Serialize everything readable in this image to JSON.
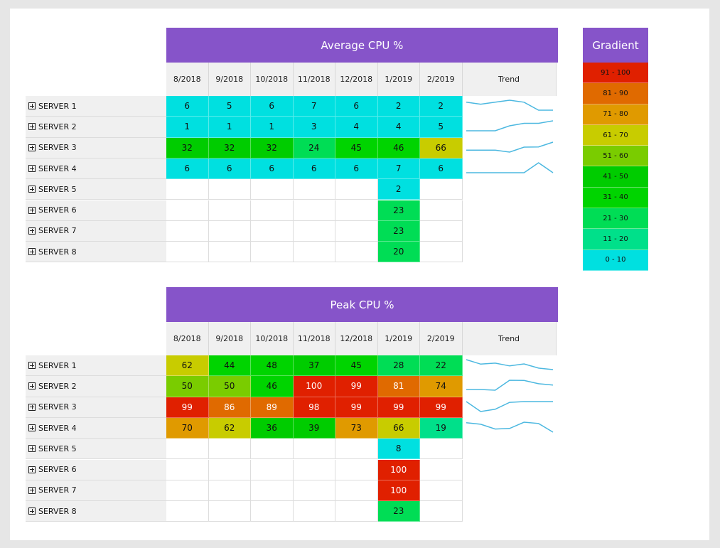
{
  "columns": [
    "8/2018",
    "9/2018",
    "10/2018",
    "11/2018",
    "12/2018",
    "1/2019",
    "2/2019"
  ],
  "trend_label": "Trend",
  "servers": [
    "SERVER 1",
    "SERVER 2",
    "SERVER 3",
    "SERVER 4",
    "SERVER 5",
    "SERVER 6",
    "SERVER 7",
    "SERVER 8"
  ],
  "colors": {
    "accent": "#8654c9",
    "trend_line": "#4cb8e0",
    "bands": [
      "#00e0e0",
      "#00e08a",
      "#00dd55",
      "#00cc00",
      "#00d400",
      "#7acc00",
      "#c8cc00",
      "#e09a00",
      "#e06a00",
      "#e02000"
    ]
  },
  "legend": {
    "title": "Gradient",
    "items": [
      "91 - 100",
      "81 - 90",
      "71 - 80",
      "61 - 70",
      "51 - 60",
      "41 - 50",
      "31 - 40",
      "21 - 30",
      "11 - 20",
      "0 - 10"
    ],
    "item_colors": [
      "#e02000",
      "#e06a00",
      "#e09a00",
      "#c8cc00",
      "#7acc00",
      "#00cc00",
      "#00d400",
      "#00dd55",
      "#00e08a",
      "#00e0e0"
    ]
  },
  "chart_data": [
    {
      "type": "heatmap",
      "title": "Average CPU %",
      "x": [
        "8/2018",
        "9/2018",
        "10/2018",
        "11/2018",
        "12/2018",
        "1/2019",
        "2/2019"
      ],
      "y": [
        "SERVER 1",
        "SERVER 2",
        "SERVER 3",
        "SERVER 4",
        "SERVER 5",
        "SERVER 6",
        "SERVER 7",
        "SERVER 8"
      ],
      "values": [
        [
          6,
          5,
          6,
          7,
          6,
          2,
          2
        ],
        [
          1,
          1,
          1,
          3,
          4,
          4,
          5
        ],
        [
          32,
          32,
          32,
          24,
          45,
          46,
          66
        ],
        [
          6,
          6,
          6,
          6,
          6,
          7,
          6
        ],
        [
          null,
          null,
          null,
          null,
          null,
          2,
          null
        ],
        [
          null,
          null,
          null,
          null,
          null,
          23,
          null
        ],
        [
          null,
          null,
          null,
          null,
          null,
          23,
          null
        ],
        [
          null,
          null,
          null,
          null,
          null,
          20,
          null
        ]
      ]
    },
    {
      "type": "heatmap",
      "title": "Peak CPU %",
      "x": [
        "8/2018",
        "9/2018",
        "10/2018",
        "11/2018",
        "12/2018",
        "1/2019",
        "2/2019"
      ],
      "y": [
        "SERVER 1",
        "SERVER 2",
        "SERVER 3",
        "SERVER 4",
        "SERVER 5",
        "SERVER 6",
        "SERVER 7",
        "SERVER 8"
      ],
      "values": [
        [
          62,
          44,
          48,
          37,
          45,
          28,
          22
        ],
        [
          50,
          50,
          46,
          100,
          99,
          81,
          74
        ],
        [
          99,
          86,
          89,
          98,
          99,
          99,
          99
        ],
        [
          70,
          62,
          36,
          39,
          73,
          66,
          19
        ],
        [
          null,
          null,
          null,
          null,
          null,
          8,
          null
        ],
        [
          null,
          null,
          null,
          null,
          null,
          100,
          null
        ],
        [
          null,
          null,
          null,
          null,
          null,
          100,
          null
        ],
        [
          null,
          null,
          null,
          null,
          null,
          23,
          null
        ]
      ]
    }
  ]
}
